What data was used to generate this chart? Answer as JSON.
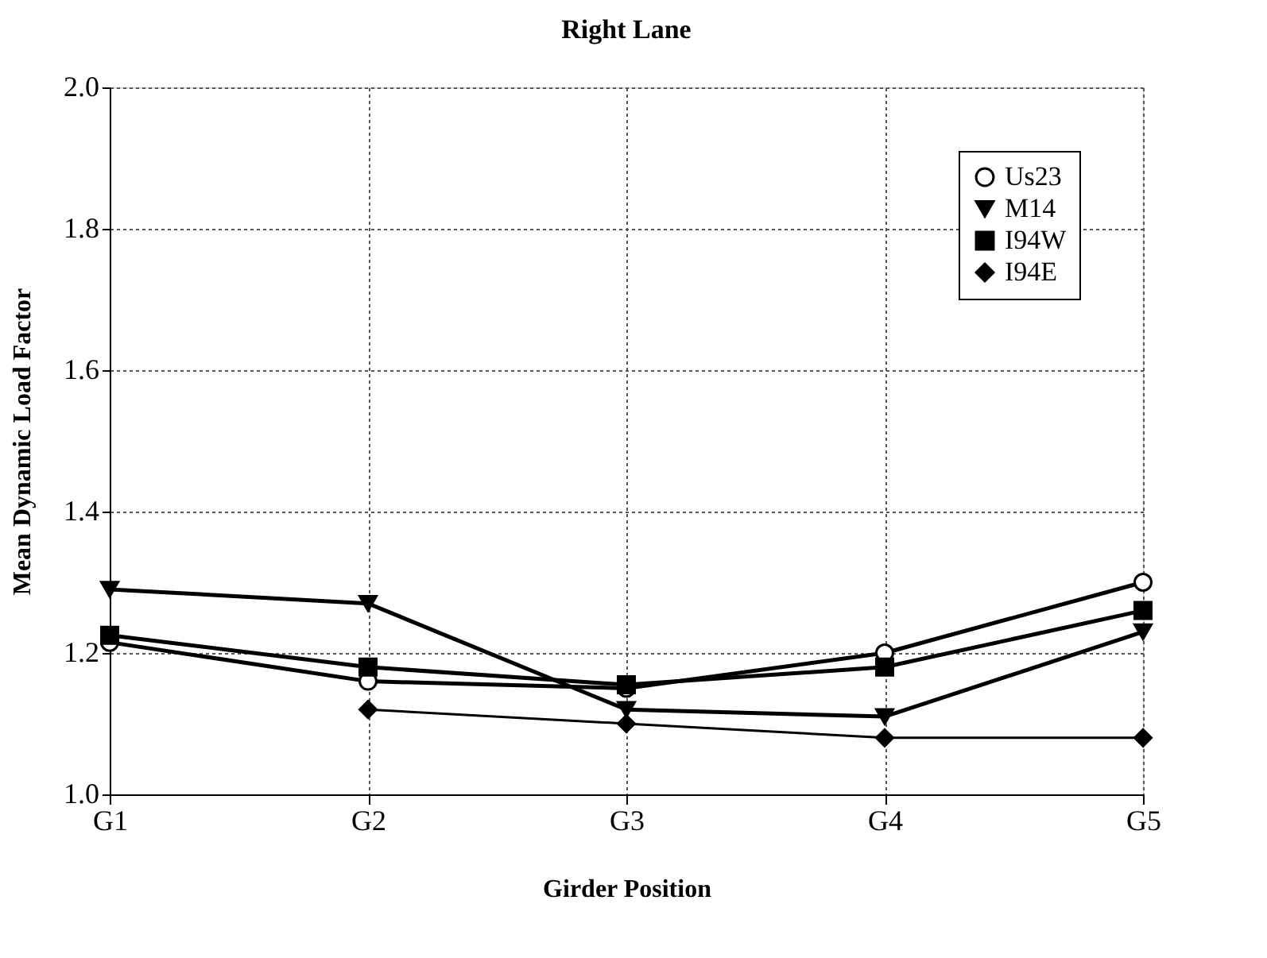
{
  "chart_data": {
    "type": "line",
    "title": "Right Lane",
    "xlabel": "Girder Position",
    "ylabel": "Mean Dynamic Load Factor",
    "categories": [
      "G1",
      "G2",
      "G3",
      "G4",
      "G5"
    ],
    "series": [
      {
        "name": "Us23",
        "color": "#000000",
        "marker": "circle",
        "values": [
          1.215,
          1.16,
          1.15,
          1.2,
          1.3
        ]
      },
      {
        "name": "M14",
        "color": "#000000",
        "marker": "triangle",
        "values": [
          1.29,
          1.27,
          1.12,
          1.11,
          1.23
        ]
      },
      {
        "name": "I94W",
        "color": "#000000",
        "marker": "square",
        "values": [
          1.225,
          1.18,
          1.155,
          1.18,
          1.26
        ]
      },
      {
        "name": "I94E",
        "color": "#000000",
        "marker": "diamond",
        "values": [
          null,
          1.12,
          1.1,
          1.08,
          1.08
        ]
      }
    ],
    "ylim": [
      1.0,
      2.0
    ],
    "yticks": [
      {
        "value": 1.0,
        "label": "1.0"
      },
      1.2,
      1.4,
      1.6,
      1.8,
      {
        "value": 2.0,
        "label": "2.0"
      }
    ],
    "grid": true,
    "legend": "top right",
    "line_style": "solid"
  }
}
